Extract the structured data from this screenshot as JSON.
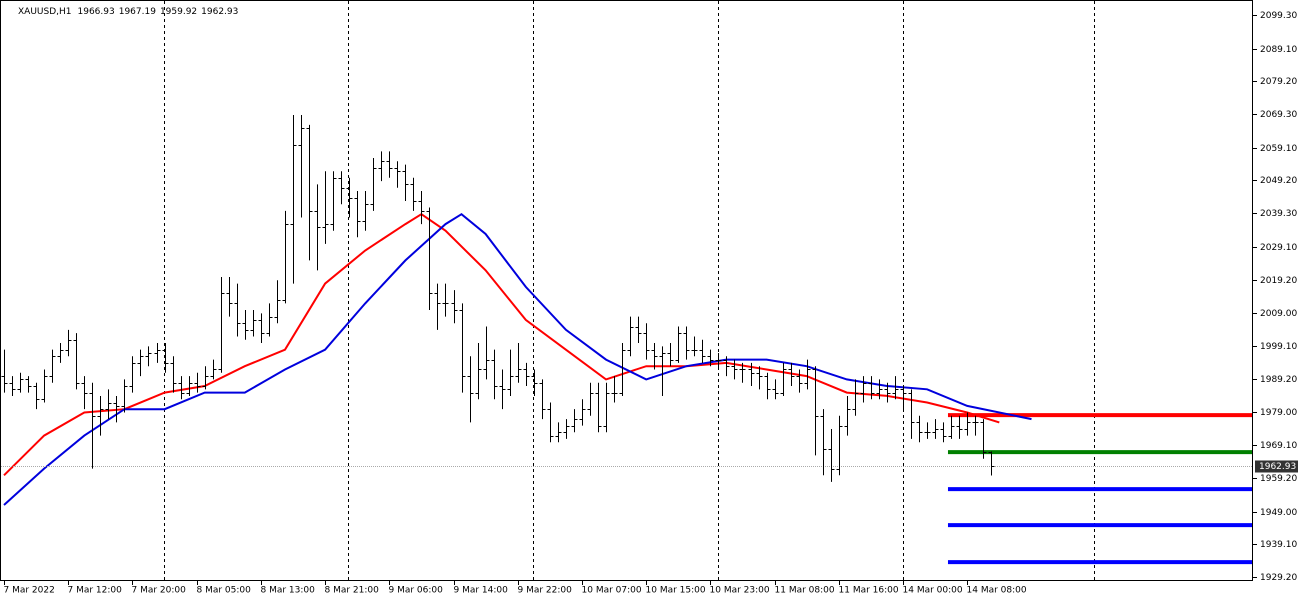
{
  "chart_data": {
    "type": "ohlc",
    "symbol": "XAUUSD,H1",
    "ohlc": [
      [
        1990,
        1998,
        1985,
        1988
      ],
      [
        1988,
        1990,
        1984,
        1986
      ],
      [
        1986,
        1991,
        1985,
        1989
      ],
      [
        1989,
        1990,
        1985,
        1987
      ],
      [
        1987,
        1988,
        1980,
        1983
      ],
      [
        1983,
        1992,
        1982,
        1990
      ],
      [
        1990,
        1998,
        1988,
        1996
      ],
      [
        1996,
        2000,
        1994,
        1998
      ],
      [
        1998,
        2004,
        1996,
        2001
      ],
      [
        2001,
        2003,
        1986,
        1988
      ],
      [
        1988,
        1990,
        1980,
        1985
      ],
      [
        1985,
        1988,
        1962,
        1978
      ],
      [
        1978,
        1984,
        1972,
        1980
      ],
      [
        1980,
        1986,
        1977,
        1982
      ],
      [
        1982,
        1984,
        1976,
        1981
      ],
      [
        1981,
        1989,
        1979,
        1987
      ],
      [
        1987,
        1996,
        1985,
        1994
      ],
      [
        1994,
        1998,
        1990,
        1996
      ],
      [
        1996,
        1999,
        1993,
        1997
      ],
      [
        1997,
        2000,
        1994,
        1998
      ],
      [
        1998,
        2000,
        1991,
        1994
      ],
      [
        1994,
        1996,
        1985,
        1988
      ],
      [
        1988,
        1990,
        1983,
        1985
      ],
      [
        1985,
        1990,
        1984,
        1988
      ],
      [
        1988,
        1991,
        1985,
        1987
      ],
      [
        1987,
        1993,
        1986,
        1990
      ],
      [
        1990,
        1995,
        1989,
        1992
      ],
      [
        1992,
        2020,
        1991,
        2015
      ],
      [
        2015,
        2020,
        2008,
        2012
      ],
      [
        2012,
        2018,
        2002,
        2006
      ],
      [
        2006,
        2010,
        2001,
        2004
      ],
      [
        2004,
        2010,
        2002,
        2007
      ],
      [
        2007,
        2009,
        2000,
        2003
      ],
      [
        2003,
        2012,
        2002,
        2008
      ],
      [
        2008,
        2019,
        2006,
        2013
      ],
      [
        2013,
        2040,
        2012,
        2036
      ],
      [
        2036,
        2069,
        2018,
        2060
      ],
      [
        2060,
        2069,
        2038,
        2065
      ],
      [
        2065,
        2066,
        2025,
        2040
      ],
      [
        2040,
        2048,
        2022,
        2035
      ],
      [
        2035,
        2052,
        2030,
        2036
      ],
      [
        2036,
        2052,
        2034,
        2050
      ],
      [
        2050,
        2052,
        2042,
        2047
      ],
      [
        2047,
        2050,
        2038,
        2044
      ],
      [
        2044,
        2046,
        2032,
        2037
      ],
      [
        2037,
        2046,
        2034,
        2042
      ],
      [
        2042,
        2056,
        2040,
        2053
      ],
      [
        2053,
        2058,
        2049,
        2055
      ],
      [
        2055,
        2058,
        2050,
        2053
      ],
      [
        2053,
        2055,
        2047,
        2052
      ],
      [
        2052,
        2054,
        2043,
        2048
      ],
      [
        2048,
        2050,
        2040,
        2043
      ],
      [
        2043,
        2046,
        2036,
        2040
      ],
      [
        2040,
        2041,
        2010,
        2015
      ],
      [
        2015,
        2018,
        2004,
        2012
      ],
      [
        2012,
        2018,
        2008,
        2012
      ],
      [
        2012,
        2016,
        2006,
        2010
      ],
      [
        2010,
        2012,
        1985,
        1990
      ],
      [
        1990,
        1996,
        1976,
        1985
      ],
      [
        1985,
        2000,
        1983,
        1992
      ],
      [
        1992,
        2005,
        1989,
        1995
      ],
      [
        1995,
        1998,
        1983,
        1987
      ],
      [
        1987,
        1992,
        1980,
        1986
      ],
      [
        1986,
        1998,
        1984,
        1990
      ],
      [
        1990,
        2000,
        1988,
        1992
      ],
      [
        1992,
        1994,
        1987,
        1990
      ],
      [
        1990,
        1992,
        1984,
        1988
      ],
      [
        1988,
        1989,
        1977,
        1980
      ],
      [
        1980,
        1982,
        1970,
        1972
      ],
      [
        1972,
        1976,
        1970,
        1973
      ],
      [
        1973,
        1977,
        1971,
        1975
      ],
      [
        1975,
        1980,
        1973,
        1977
      ],
      [
        1977,
        1983,
        1975,
        1980
      ],
      [
        1980,
        1988,
        1978,
        1985
      ],
      [
        1985,
        1988,
        1973,
        1975
      ],
      [
        1975,
        1988,
        1973,
        1985
      ],
      [
        1985,
        1990,
        1982,
        1985
      ],
      [
        1985,
        2000,
        1984,
        1998
      ],
      [
        1998,
        2008,
        1996,
        2005
      ],
      [
        2005,
        2008,
        2000,
        2003
      ],
      [
        2003,
        2006,
        1995,
        1998
      ],
      [
        1998,
        2000,
        1992,
        1996
      ],
      [
        1996,
        1999,
        1984,
        1997
      ],
      [
        1997,
        2000,
        1993,
        1995
      ],
      [
        1995,
        2005,
        1994,
        2003
      ],
      [
        2003,
        2005,
        1995,
        1998
      ],
      [
        1998,
        2002,
        1996,
        1998
      ],
      [
        1998,
        2001,
        1994,
        1996
      ],
      [
        1996,
        1998,
        1993,
        1995
      ],
      [
        1995,
        1997,
        1992,
        1995
      ],
      [
        1995,
        1996,
        1990,
        1993
      ],
      [
        1993,
        1995,
        1989,
        1992
      ],
      [
        1992,
        1994,
        1988,
        1992
      ],
      [
        1992,
        1994,
        1987,
        1991
      ],
      [
        1991,
        1993,
        1986,
        1990
      ],
      [
        1990,
        1991,
        1983,
        1986
      ],
      [
        1986,
        1989,
        1983,
        1985
      ],
      [
        1985,
        1994,
        1984,
        1992
      ],
      [
        1992,
        1994,
        1987,
        1990
      ],
      [
        1990,
        1992,
        1985,
        1988
      ],
      [
        1988,
        1995,
        1986,
        1992
      ],
      [
        1992,
        1993,
        1966,
        1978
      ],
      [
        1978,
        1980,
        1960,
        1968
      ],
      [
        1968,
        1974,
        1958,
        1962
      ],
      [
        1962,
        1978,
        1960,
        1975
      ],
      [
        1975,
        1984,
        1972,
        1980
      ],
      [
        1980,
        1989,
        1978,
        1985
      ],
      [
        1985,
        1990,
        1982,
        1988
      ],
      [
        1988,
        1990,
        1983,
        1985
      ],
      [
        1985,
        1989,
        1983,
        1986
      ],
      [
        1986,
        1988,
        1982,
        1985
      ],
      [
        1985,
        1990,
        1983,
        1986
      ],
      [
        1986,
        1987,
        1980,
        1985
      ],
      [
        1985,
        1986,
        1971,
        1976
      ],
      [
        1976,
        1978,
        1970,
        1973
      ],
      [
        1973,
        1976,
        1971,
        1973
      ],
      [
        1973,
        1977,
        1971,
        1974
      ],
      [
        1974,
        1976,
        1970,
        1972
      ],
      [
        1972,
        1978,
        1971,
        1975
      ],
      [
        1975,
        1978,
        1971,
        1974
      ],
      [
        1974,
        1979,
        1972,
        1976
      ],
      [
        1976,
        1978,
        1972,
        1976
      ],
      [
        1976,
        1977,
        1965,
        1966.93
      ],
      [
        1966.93,
        1967.19,
        1959.92,
        1962.93
      ]
    ],
    "series": [
      {
        "color": "#ff0000",
        "x": [
          0,
          5,
          10,
          15,
          20,
          25,
          30,
          35,
          40,
          45,
          50,
          52,
          55,
          60,
          65,
          70,
          75,
          80,
          85,
          90,
          95,
          100,
          105,
          110,
          115,
          120,
          124
        ],
        "values": [
          1960,
          1972,
          1979,
          1980,
          1985,
          1987,
          1993,
          1998,
          2018,
          2028,
          2036,
          2039,
          2034,
          2022,
          2007,
          1998,
          1989,
          1993,
          1993,
          1994,
          1992,
          1990,
          1985,
          1984,
          1982,
          1979,
          1976
        ]
      },
      {
        "color": "#0000dd",
        "x": [
          0,
          5,
          10,
          15,
          20,
          25,
          30,
          35,
          40,
          45,
          50,
          55,
          57,
          60,
          65,
          70,
          75,
          80,
          85,
          90,
          95,
          100,
          105,
          110,
          115,
          120,
          128
        ],
        "values": [
          1951,
          1962,
          1972,
          1980,
          1980,
          1985,
          1985,
          1992,
          1998,
          2012,
          2025,
          2036,
          2039,
          2033,
          2017,
          2004,
          1995,
          1989,
          1993,
          1995,
          1995,
          1993,
          1989,
          1987,
          1986,
          1981,
          1977
        ]
      }
    ],
    "levels": [
      {
        "value": 1978.2,
        "color": "#ff0000"
      },
      {
        "value": 1967,
        "color": "#008000"
      },
      {
        "value": 1955.8,
        "color": "#0000ff"
      },
      {
        "value": 1944.9,
        "color": "#0000ff"
      },
      {
        "value": 1933.7,
        "color": "#0000ff"
      }
    ],
    "levels_start": 117.6,
    "period_separators": [
      19.9,
      42.9,
      65.9,
      88.9,
      112,
      135.8
    ],
    "xlim": [
      -0.5,
      155.6
    ],
    "xticks": [
      {
        "value": 0,
        "label": "7 Mar 2022"
      },
      {
        "value": 8,
        "label": "7 Mar 12:00"
      },
      {
        "value": 16,
        "label": "7 Mar 20:00"
      },
      {
        "value": 24,
        "label": "8 Mar 05:00"
      },
      {
        "value": 32,
        "label": "8 Mar 13:00"
      },
      {
        "value": 40,
        "label": "8 Mar 21:00"
      },
      {
        "value": 48,
        "label": "9 Mar 06:00"
      },
      {
        "value": 56,
        "label": "9 Mar 14:00"
      },
      {
        "value": 64,
        "label": "9 Mar 22:00"
      },
      {
        "value": 72,
        "label": "10 Mar 07:00"
      },
      {
        "value": 80,
        "label": "10 Mar 15:00"
      },
      {
        "value": 88,
        "label": "10 Mar 23:00"
      },
      {
        "value": 96,
        "label": "11 Mar 08:00"
      },
      {
        "value": 104,
        "label": "11 Mar 16:00"
      },
      {
        "value": 112,
        "label": "14 Mar 00:00"
      },
      {
        "value": 120,
        "label": "14 Mar 08:00"
      }
    ],
    "ylim": [
      1927.4,
      2103.8
    ],
    "yticks": [
      {
        "value": 2099.3,
        "label": "2099.30"
      },
      {
        "value": 2089.1,
        "label": "2089.10"
      },
      {
        "value": 2079.2,
        "label": "2079.20"
      },
      {
        "value": 2069.3,
        "label": "2069.30"
      },
      {
        "value": 2059.1,
        "label": "2059.10"
      },
      {
        "value": 2049.2,
        "label": "2049.20"
      },
      {
        "value": 2039.3,
        "label": "2039.30"
      },
      {
        "value": 2029.1,
        "label": "2029.10"
      },
      {
        "value": 2019.2,
        "label": "2019.20"
      },
      {
        "value": 2009,
        "label": "2009.00"
      },
      {
        "value": 1999.1,
        "label": "1999.10"
      },
      {
        "value": 1989.2,
        "label": "1989.20"
      },
      {
        "value": 1979,
        "label": "1979.00"
      },
      {
        "value": 1969.1,
        "label": "1969.10"
      },
      {
        "value": 1959.2,
        "label": "1959.20"
      },
      {
        "value": 1949,
        "label": "1949.00"
      },
      {
        "value": 1939.1,
        "label": "1939.10"
      },
      {
        "value": 1929.2,
        "label": "1929.20"
      }
    ]
  }
}
